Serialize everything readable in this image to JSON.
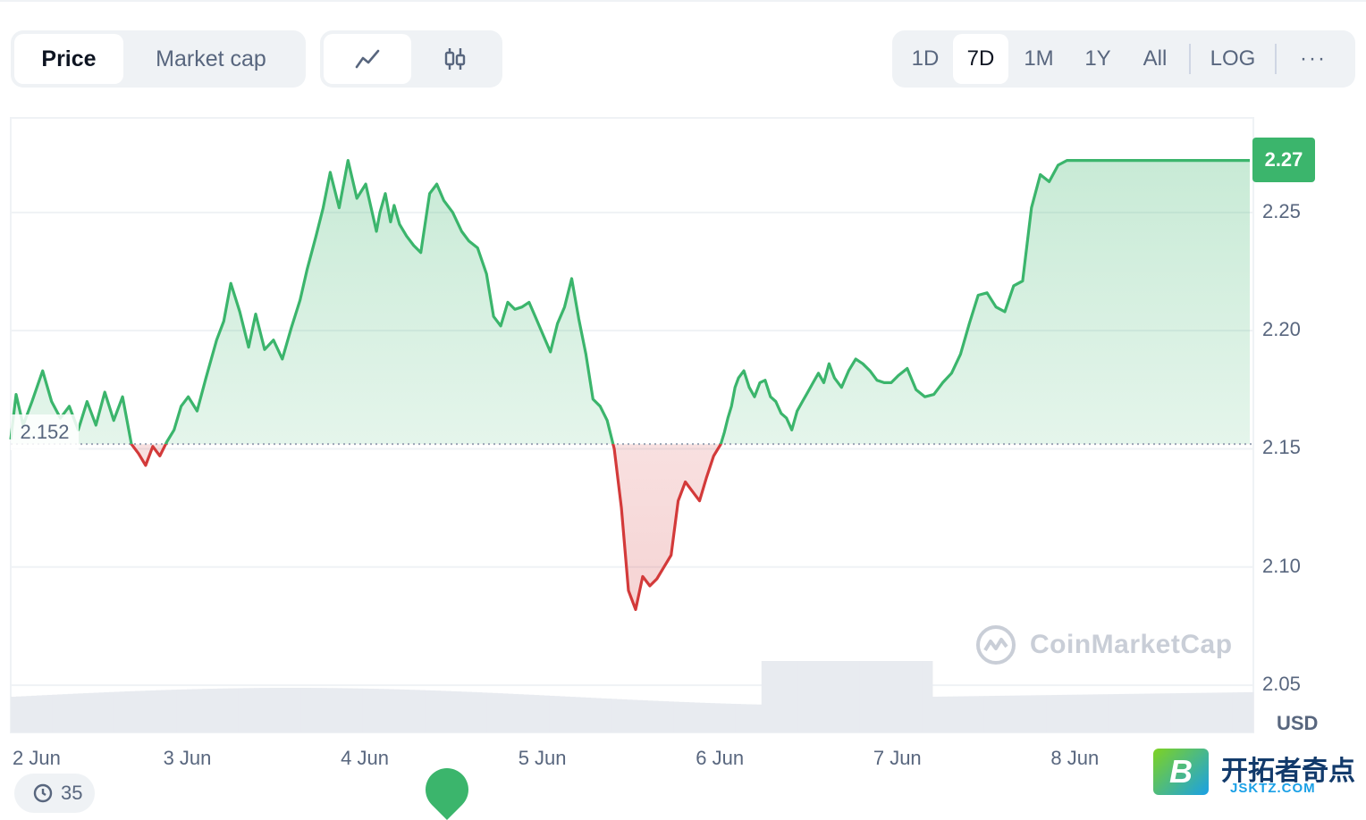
{
  "toolbar": {
    "metric_tabs": [
      {
        "label": "Price",
        "active": true
      },
      {
        "label": "Market cap",
        "active": false
      }
    ],
    "chart_type_icons": [
      "line-chart-icon",
      "candlestick-icon"
    ],
    "range_tabs": [
      {
        "label": "1D",
        "active": false
      },
      {
        "label": "7D",
        "active": true
      },
      {
        "label": "1M",
        "active": false
      },
      {
        "label": "1Y",
        "active": false
      },
      {
        "label": "All",
        "active": false
      }
    ],
    "log_label": "LOG",
    "more_label": "···"
  },
  "badges": {
    "current_price": "2.27",
    "baseline": "2.152"
  },
  "axis": {
    "unit": "USD"
  },
  "watermark": {
    "text": "CoinMarketCap"
  },
  "history_chip": {
    "count": "35"
  },
  "site_logo": {
    "letter": "B",
    "text": "开拓者奇点",
    "sub": "JSKTZ.COM"
  },
  "colors": {
    "up": "#3bb56c",
    "down": "#d33a3a",
    "grid": "#eff2f5",
    "volume": "#e8ebf0"
  },
  "chart_data": {
    "type": "area",
    "baseline": 2.152,
    "ylim": [
      2.03,
      2.29
    ],
    "yticks": [
      2.05,
      2.1,
      2.15,
      2.2,
      2.25
    ],
    "ytick_labels": [
      "2.05",
      "2.10",
      "2.15",
      "2.20",
      "2.25"
    ],
    "xlim": [
      0,
      7.0
    ],
    "xticks": [
      0,
      1,
      2,
      3,
      4,
      5,
      6
    ],
    "xtick_labels": [
      "2 Jun",
      "3 Jun",
      "4 Jun",
      "5 Jun",
      "6 Jun",
      "7 Jun",
      "8 Jun"
    ],
    "x": [
      0,
      0.03,
      0.07,
      0.12,
      0.18,
      0.23,
      0.28,
      0.33,
      0.38,
      0.43,
      0.48,
      0.53,
      0.58,
      0.63,
      0.68,
      0.72,
      0.76,
      0.8,
      0.84,
      0.88,
      0.92,
      0.96,
      1.0,
      1.05,
      1.1,
      1.16,
      1.2,
      1.24,
      1.29,
      1.34,
      1.38,
      1.43,
      1.48,
      1.53,
      1.58,
      1.63,
      1.67,
      1.72,
      1.76,
      1.8,
      1.85,
      1.9,
      1.95,
      2.0,
      2.03,
      2.06,
      2.08,
      2.11,
      2.14,
      2.16,
      2.19,
      2.23,
      2.27,
      2.31,
      2.36,
      2.4,
      2.44,
      2.49,
      2.54,
      2.58,
      2.63,
      2.68,
      2.72,
      2.76,
      2.8,
      2.84,
      2.88,
      2.92,
      2.96,
      3.0,
      3.04,
      3.08,
      3.12,
      3.16,
      3.2,
      3.24,
      3.28,
      3.32,
      3.36,
      3.4,
      3.44,
      3.48,
      3.52,
      3.56,
      3.6,
      3.64,
      3.68,
      3.72,
      3.76,
      3.8,
      3.84,
      3.88,
      3.92,
      3.96,
      4.0,
      4.02,
      4.04,
      4.06,
      4.08,
      4.1,
      4.13,
      4.16,
      4.19,
      4.22,
      4.25,
      4.28,
      4.31,
      4.34,
      4.37,
      4.4,
      4.43,
      4.46,
      4.49,
      4.52,
      4.55,
      4.58,
      4.61,
      4.64,
      4.68,
      4.72,
      4.76,
      4.8,
      4.84,
      4.88,
      4.92,
      4.96,
      5.0,
      5.05,
      5.1,
      5.15,
      5.2,
      5.25,
      5.3,
      5.35,
      5.4,
      5.45,
      5.5,
      5.55,
      5.6,
      5.65,
      5.7,
      5.75,
      5.8,
      5.85,
      5.9,
      5.95,
      6.0,
      6.05,
      6.1,
      6.15,
      6.2,
      6.25,
      6.3,
      6.35,
      6.4,
      6.45,
      6.5,
      6.55,
      6.6,
      6.63,
      6.66,
      6.69,
      6.72,
      6.75,
      6.78,
      6.81,
      6.84,
      6.87,
      6.9,
      6.93,
      6.96,
      6.98
    ],
    "y": [
      2.154,
      2.173,
      2.16,
      2.17,
      2.183,
      2.17,
      2.163,
      2.168,
      2.158,
      2.17,
      2.16,
      2.174,
      2.162,
      2.172,
      2.152,
      2.148,
      2.143,
      2.151,
      2.147,
      2.153,
      2.158,
      2.168,
      2.172,
      2.166,
      2.18,
      2.196,
      2.204,
      2.22,
      2.208,
      2.193,
      2.207,
      2.192,
      2.196,
      2.188,
      2.201,
      2.213,
      2.226,
      2.24,
      2.252,
      2.267,
      2.252,
      2.272,
      2.256,
      2.262,
      2.252,
      2.242,
      2.25,
      2.258,
      2.246,
      2.253,
      2.245,
      2.24,
      2.236,
      2.233,
      2.258,
      2.262,
      2.255,
      2.25,
      2.242,
      2.238,
      2.235,
      2.224,
      2.206,
      2.202,
      2.212,
      2.209,
      2.21,
      2.212,
      2.205,
      2.198,
      2.191,
      2.203,
      2.21,
      2.222,
      2.205,
      2.19,
      2.171,
      2.168,
      2.162,
      2.15,
      2.125,
      2.09,
      2.082,
      2.096,
      2.092,
      2.095,
      2.1,
      2.105,
      2.128,
      2.136,
      2.132,
      2.128,
      2.138,
      2.147,
      2.152,
      2.157,
      2.163,
      2.168,
      2.176,
      2.18,
      2.183,
      2.176,
      2.172,
      2.178,
      2.179,
      2.172,
      2.17,
      2.165,
      2.163,
      2.158,
      2.166,
      2.17,
      2.174,
      2.178,
      2.182,
      2.178,
      2.186,
      2.18,
      2.176,
      2.183,
      2.188,
      2.186,
      2.183,
      2.179,
      2.178,
      2.178,
      2.181,
      2.184,
      2.175,
      2.172,
      2.173,
      2.178,
      2.182,
      2.19,
      2.203,
      2.215,
      2.216,
      2.21,
      2.208,
      2.219,
      2.221,
      2.252,
      2.266,
      2.263,
      2.27,
      2.272,
      2.272,
      2.272,
      2.272,
      2.272,
      2.272,
      2.272,
      2.272,
      2.272,
      2.272,
      2.272,
      2.272,
      2.272,
      2.272,
      2.272,
      2.272,
      2.272,
      2.272,
      2.272,
      2.272,
      2.272,
      2.272,
      2.272,
      2.272,
      2.272,
      2.272,
      2.272
    ],
    "grid": true,
    "legend": "none"
  }
}
